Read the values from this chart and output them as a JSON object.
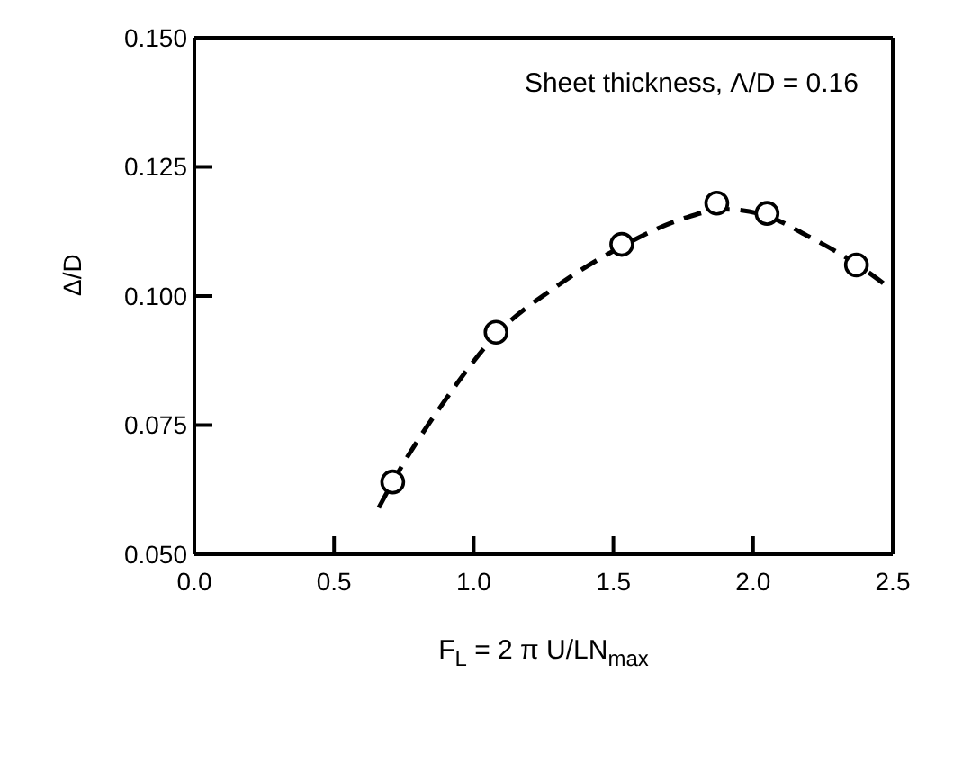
{
  "chart_data": {
    "type": "scatter",
    "xlabel": "F$_{L}$ = 2 π U/LN$_{max}$",
    "ylabel": "Δ/D",
    "annotations": [
      "Sheet thickness, Λ/D = 0.16"
    ],
    "xlim": [
      0.0,
      2.5
    ],
    "xticks": [
      {
        "value": 0,
        "label": "0.0"
      },
      0.5,
      {
        "value": 1,
        "label": "1.0"
      },
      1.5,
      {
        "value": 2,
        "label": "2.0"
      },
      2.5
    ],
    "ylim": [
      0.05,
      0.15
    ],
    "yticks": [
      {
        "value": 0.05,
        "label": "0.050"
      },
      {
        "value": 0.075,
        "label": "0.075"
      },
      {
        "value": 0.1,
        "label": "0.100"
      },
      {
        "value": 0.125,
        "label": "0.125"
      },
      {
        "value": 0.15,
        "label": "0.150"
      }
    ],
    "marker": "circle",
    "series": [
      {
        "color": "#000000",
        "x": [
          0.71,
          1.08,
          1.53,
          1.87,
          2.05,
          2.37
        ],
        "values": [
          0.064,
          0.093,
          0.11,
          0.118,
          0.116,
          0.106
        ]
      },
      {
        "type": "line",
        "color": "#000000",
        "line_style": "dashed",
        "marker": "none",
        "x": [
          0.66,
          0.71,
          0.9,
          1.08,
          1.3,
          1.53,
          1.75,
          1.9,
          2.05,
          2.2,
          2.37,
          2.49
        ],
        "values": [
          0.059,
          0.064,
          0.08,
          0.0925,
          0.102,
          0.1096,
          0.115,
          0.1168,
          0.1155,
          0.1115,
          0.1062,
          0.1015
        ]
      }
    ]
  }
}
